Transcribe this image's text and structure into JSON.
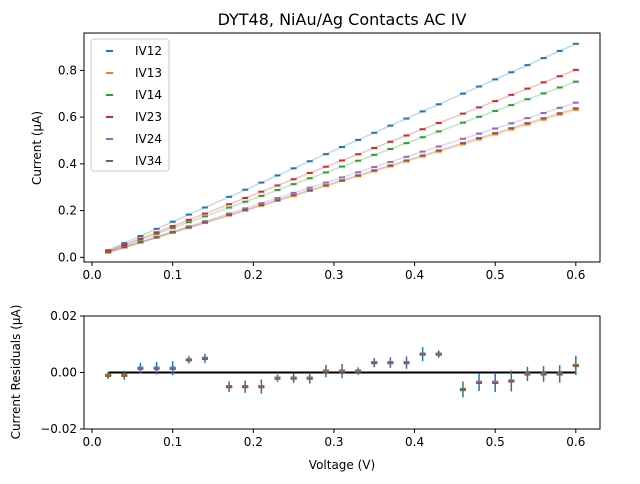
{
  "chart_data": [
    {
      "type": "scatter",
      "title": "DYT48, NiAu/Ag Contacts AC IV",
      "xlabel": "",
      "ylabel": "Current (μA)",
      "xlim": [
        -0.01,
        0.63
      ],
      "ylim": [
        -0.02,
        0.96
      ],
      "xticks": [
        0.0,
        0.1,
        0.2,
        0.3,
        0.4,
        0.5,
        0.6
      ],
      "yticks": [
        0.0,
        0.2,
        0.4,
        0.6,
        0.8
      ],
      "xtick_labels": [
        "0.0",
        "0.1",
        "0.2",
        "0.3",
        "0.4",
        "0.5",
        "0.6"
      ],
      "ytick_labels": [
        "0.0",
        "0.2",
        "0.4",
        "0.6",
        "0.8"
      ],
      "legend_position": "top-left",
      "grid": false,
      "x": [
        0.02,
        0.04,
        0.06,
        0.08,
        0.1,
        0.12,
        0.14,
        0.17,
        0.19,
        0.21,
        0.23,
        0.25,
        0.27,
        0.29,
        0.31,
        0.33,
        0.35,
        0.37,
        0.39,
        0.41,
        0.43,
        0.46,
        0.48,
        0.5,
        0.52,
        0.54,
        0.56,
        0.58,
        0.6
      ],
      "series": [
        {
          "name": "IV12",
          "color": "#1f77b4",
          "slope": 1.523
        },
        {
          "name": "IV13",
          "color": "#ff7f0e",
          "slope": 1.052
        },
        {
          "name": "IV14",
          "color": "#2ca02c",
          "slope": 1.253
        },
        {
          "name": "IV23",
          "color": "#d62728",
          "slope": 1.337
        },
        {
          "name": "IV24",
          "color": "#9467bd",
          "slope": 1.103
        },
        {
          "name": "IV34",
          "color": "#8c564b",
          "slope": 1.063
        }
      ],
      "residuals": [
        -0.001,
        -0.001,
        0.0015,
        0.0015,
        0.0015,
        0.0045,
        0.005,
        -0.005,
        -0.005,
        -0.005,
        -0.002,
        -0.002,
        -0.002,
        0.0005,
        0.0005,
        0.0005,
        0.0035,
        0.0035,
        0.0035,
        0.0065,
        0.0065,
        -0.006,
        -0.0035,
        -0.0035,
        -0.003,
        -0.0005,
        -0.0005,
        -0.0005,
        0.0025
      ]
    },
    {
      "type": "scatter",
      "title": "",
      "xlabel": "Voltage (V)",
      "ylabel": "Current Residuals (μA)",
      "xlim": [
        -0.01,
        0.63
      ],
      "ylim": [
        -0.02,
        0.02
      ],
      "xticks": [
        0.0,
        0.1,
        0.2,
        0.3,
        0.4,
        0.5,
        0.6
      ],
      "yticks": [
        -0.02,
        0.0,
        0.02
      ],
      "xtick_labels": [
        "0.0",
        "0.1",
        "0.2",
        "0.3",
        "0.4",
        "0.5",
        "0.6"
      ],
      "ytick_labels": [
        "−0.02",
        "0.00",
        "0.02"
      ],
      "grid": false,
      "zero_line": true
    }
  ]
}
